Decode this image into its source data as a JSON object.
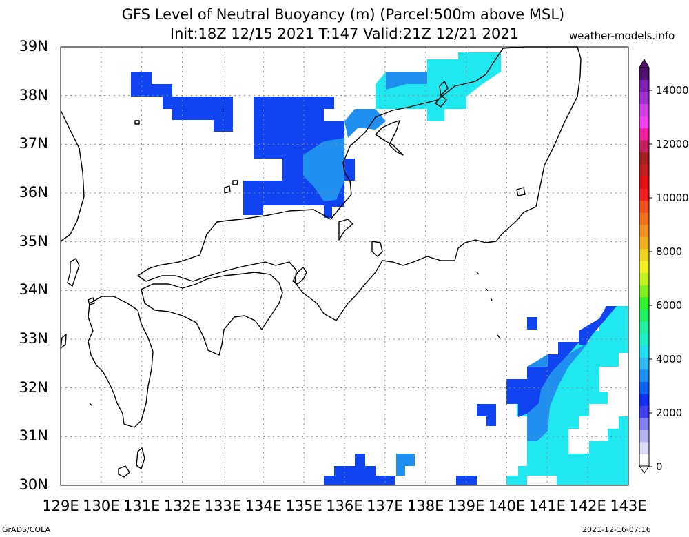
{
  "title_line1": "GFS Level of Neutral Buoyancy (m) (Parcel:500m above MSL)",
  "title_line2": "Init:18Z 12/15 2021 T:147 Valid:21Z 12/21 2021",
  "site": "weather-models.info",
  "footer_left": "GrADS/COLA",
  "footer_right": "2021-12-16-07:16",
  "map": {
    "lon_range": [
      129,
      143
    ],
    "lat_range": [
      30,
      39
    ],
    "lat_labels": [
      "39N",
      "38N",
      "37N",
      "36N",
      "35N",
      "34N",
      "33N",
      "32N",
      "31N",
      "30N"
    ],
    "lon_labels": [
      "129E",
      "130E",
      "131E",
      "132E",
      "133E",
      "134E",
      "135E",
      "136E",
      "137E",
      "138E",
      "139E",
      "140E",
      "141E",
      "142E",
      "143E"
    ]
  },
  "colorbar": {
    "labels": [
      "14000",
      "12000",
      "10000",
      "8000",
      "6000",
      "4000",
      "2000",
      "0"
    ],
    "colors": [
      "#ffffff",
      "#dadaf8",
      "#b4b4f2",
      "#8080f0",
      "#4040f0",
      "#1030f0",
      "#1060f0",
      "#2090f0",
      "#30b8f0",
      "#20e0f0",
      "#20f0c8",
      "#20f0a0",
      "#20f060",
      "#30f030",
      "#80f020",
      "#c0f020",
      "#f0f020",
      "#f0d020",
      "#f0b020",
      "#f09020",
      "#f07020",
      "#f05020",
      "#f02020",
      "#e01010",
      "#c02020",
      "#a02020",
      "#c02060",
      "#f020a0",
      "#f040f0",
      "#d040e0",
      "#a030d0",
      "#8020b0",
      "#501070"
    ],
    "colors_note": "bottom to top"
  },
  "colors": {
    "grid": "#888888",
    "coast": "#000000",
    "lnb_low": "#1044f0",
    "lnb_mid": "#2090f0",
    "lnb_high": "#20e8f0"
  }
}
